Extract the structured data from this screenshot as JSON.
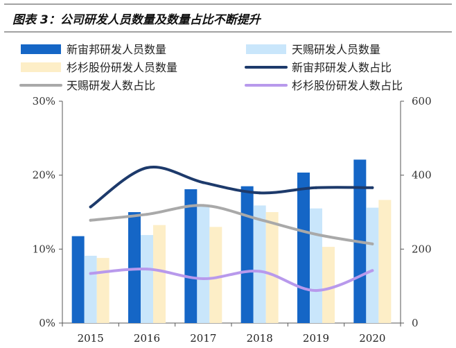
{
  "chart_data": {
    "type": "bar",
    "title": "图表 3：公司研发人员数量及数量占比不断提升",
    "categories": [
      "2015",
      "2016",
      "2017",
      "2018",
      "2019",
      "2020"
    ],
    "y_left": {
      "ticks": [
        "0%",
        "10%",
        "20%",
        "30%"
      ],
      "range": [
        0,
        0.3
      ]
    },
    "y_right": {
      "ticks": [
        "0",
        "200",
        "400",
        "600"
      ],
      "range": [
        0,
        600
      ]
    },
    "grid": false,
    "legend_position": "top",
    "series": [
      {
        "name": "新宙邦研发人员数量",
        "kind": "bar",
        "axis": "right",
        "color": "#1566c6",
        "values": [
          235,
          300,
          362,
          370,
          407,
          442
        ]
      },
      {
        "name": "天赐研发人员数量",
        "kind": "bar",
        "axis": "right",
        "color": "#c9e6fb",
        "values": [
          182,
          238,
          320,
          318,
          310,
          312
        ]
      },
      {
        "name": "杉杉股份研发人员数量",
        "kind": "bar",
        "axis": "right",
        "color": "#fdeec7",
        "values": [
          176,
          265,
          260,
          300,
          206,
          333
        ]
      },
      {
        "name": "新宙邦研发人数占比",
        "kind": "line",
        "axis": "left",
        "color": "#1d3a6b",
        "values": [
          0.157,
          0.21,
          0.19,
          0.176,
          0.183,
          0.183
        ]
      },
      {
        "name": "天赐研发人数占比",
        "kind": "line",
        "axis": "left",
        "color": "#a9a9a9",
        "values": [
          0.139,
          0.147,
          0.159,
          0.14,
          0.12,
          0.107
        ]
      },
      {
        "name": "杉杉股份研发人数占比",
        "kind": "line",
        "axis": "left",
        "color": "#b899ec",
        "values": [
          0.067,
          0.073,
          0.06,
          0.07,
          0.044,
          0.071
        ]
      }
    ]
  }
}
